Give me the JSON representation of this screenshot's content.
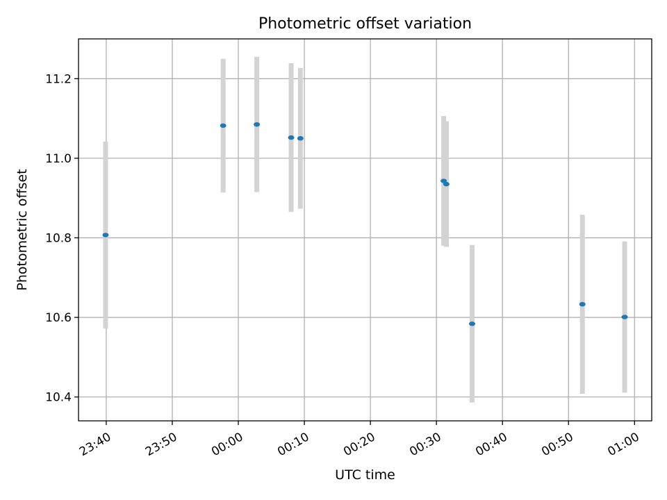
{
  "chart_data": {
    "type": "scatter",
    "title": "Photometric offset variation",
    "xlabel": "UTC time",
    "ylabel": "Photometric offset",
    "x_ticks": [
      "23:40",
      "23:50",
      "00:00",
      "00:10",
      "00:20",
      "00:30",
      "00:40",
      "00:50",
      "01:00"
    ],
    "y_ticks": [
      "10.4",
      "10.6",
      "10.8",
      "11.0",
      "11.2"
    ],
    "xlim": [
      "23:35.8",
      "01:02.6"
    ],
    "ylim": [
      10.34,
      11.3
    ],
    "grid": true,
    "series": [
      {
        "points": [
          {
            "x": "23:39.9",
            "y": 10.807,
            "err": 0.235
          },
          {
            "x": "23:57.7",
            "y": 11.082,
            "err": 0.168
          },
          {
            "x": "00:02.8",
            "y": 11.085,
            "err": 0.17
          },
          {
            "x": "00:08.0",
            "y": 11.052,
            "err": 0.187
          },
          {
            "x": "00:09.4",
            "y": 11.05,
            "err": 0.177
          },
          {
            "x": "00:31.1",
            "y": 10.943,
            "err": 0.163
          },
          {
            "x": "00:31.5",
            "y": 10.935,
            "err": 0.158
          },
          {
            "x": "00:35.4",
            "y": 10.584,
            "err": 0.198
          },
          {
            "x": "00:52.1",
            "y": 10.633,
            "err": 0.225
          },
          {
            "x": "00:58.5",
            "y": 10.601,
            "err": 0.19
          }
        ]
      }
    ],
    "colors": {
      "marker": "#1f77b4",
      "errorbar": "#d3d3d3",
      "grid": "#b0b0b0"
    }
  }
}
